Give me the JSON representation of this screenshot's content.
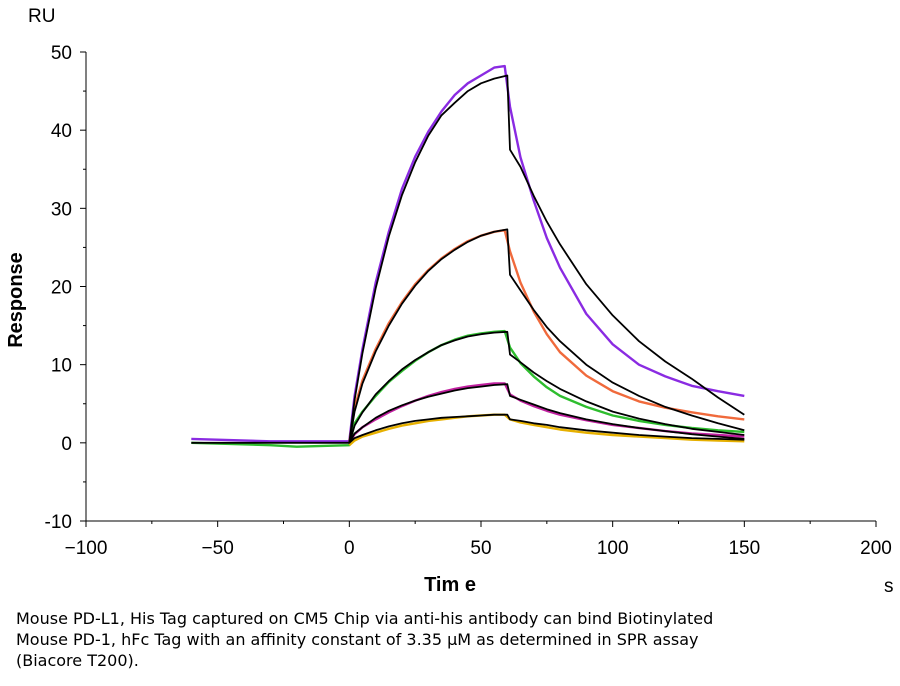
{
  "chart_data": {
    "type": "line",
    "title": "",
    "xlabel": "Tim e",
    "ylabel": "Response",
    "x_unit": "s",
    "y_unit": "RU",
    "xlim": [
      -100,
      200
    ],
    "ylim": [
      -10,
      50
    ],
    "x_ticks": [
      -100,
      -50,
      0,
      50,
      100,
      150,
      200
    ],
    "y_ticks": [
      -10,
      0,
      10,
      20,
      30,
      40,
      50
    ],
    "legend": "none",
    "grid": false,
    "colors": {
      "fit": "#000000",
      "purple": "#8a2be2",
      "orange": "#f06a3c",
      "green": "#2ebd2e",
      "magenta": "#c0209f",
      "yellow": "#e6b000"
    },
    "series": [
      {
        "color_key": "purple",
        "role": "measured",
        "x": [
          -60,
          -30,
          0,
          2,
          5,
          10,
          15,
          20,
          25,
          30,
          35,
          40,
          45,
          50,
          55,
          59,
          61,
          65,
          70,
          75,
          80,
          90,
          100,
          110,
          120,
          130,
          140,
          150
        ],
        "y": [
          0.5,
          0.2,
          0.2,
          6,
          12,
          20.5,
          27,
          32.5,
          36.6,
          39.8,
          42.4,
          44.5,
          46,
          47,
          48,
          48.2,
          43,
          36.5,
          31,
          26.2,
          22.4,
          16.5,
          12.6,
          10,
          8.5,
          7.3,
          6.6,
          6
        ]
      },
      {
        "color_key": "fit",
        "role": "fit",
        "x": [
          -60,
          -30,
          0,
          2,
          5,
          10,
          15,
          20,
          25,
          30,
          35,
          40,
          45,
          50,
          55,
          60,
          61,
          65,
          70,
          75,
          80,
          90,
          100,
          110,
          120,
          130,
          140,
          150
        ],
        "y": [
          0,
          0,
          0,
          5.5,
          11.5,
          19.8,
          26.4,
          31.7,
          35.9,
          39.3,
          41.9,
          43.5,
          45,
          46,
          46.6,
          47,
          37.5,
          35.3,
          31.6,
          28.3,
          25.4,
          20.3,
          16.3,
          13,
          10.4,
          8.2,
          5.8,
          3.6
        ]
      },
      {
        "color_key": "orange",
        "role": "measured",
        "x": [
          0,
          2,
          5,
          10,
          15,
          20,
          25,
          30,
          35,
          40,
          45,
          50,
          55,
          59,
          61,
          65,
          70,
          75,
          80,
          90,
          100,
          110,
          120,
          130,
          140,
          150
        ],
        "y": [
          0,
          4.5,
          8,
          12,
          15.3,
          18,
          20.3,
          22.1,
          23.6,
          24.8,
          25.8,
          26.5,
          27,
          27.2,
          24.5,
          20.5,
          16.8,
          13.9,
          11.6,
          8.6,
          6.6,
          5.3,
          4.5,
          3.9,
          3.4,
          3
        ]
      },
      {
        "color_key": "fit",
        "role": "fit",
        "x": [
          0,
          2,
          5,
          10,
          15,
          20,
          25,
          30,
          35,
          40,
          45,
          50,
          55,
          60,
          61,
          65,
          70,
          75,
          80,
          90,
          100,
          110,
          120,
          130,
          140,
          150
        ],
        "y": [
          0,
          4,
          7.6,
          11.7,
          15,
          17.8,
          20.1,
          22,
          23.5,
          24.7,
          25.7,
          26.5,
          27,
          27.3,
          21.5,
          19.5,
          17,
          14.8,
          13,
          10,
          7.7,
          6,
          4.6,
          3.5,
          2.5,
          1.6
        ]
      },
      {
        "color_key": "green",
        "role": "measured",
        "x": [
          -60,
          -30,
          -20,
          0,
          2,
          5,
          10,
          15,
          20,
          25,
          30,
          35,
          40,
          45,
          50,
          55,
          59,
          61,
          65,
          70,
          75,
          80,
          90,
          100,
          110,
          120,
          130,
          140,
          150
        ],
        "y": [
          0,
          -0.3,
          -0.5,
          -0.3,
          2.5,
          4,
          6,
          7.8,
          9.2,
          10.5,
          11.6,
          12.5,
          13.2,
          13.7,
          14,
          14.2,
          14.3,
          12.2,
          10.2,
          8.5,
          7.1,
          6,
          4.6,
          3.5,
          2.8,
          2.3,
          1.9,
          1.6,
          1.4
        ]
      },
      {
        "color_key": "fit",
        "role": "fit",
        "x": [
          0,
          2,
          5,
          10,
          15,
          20,
          25,
          30,
          35,
          40,
          45,
          50,
          55,
          60,
          61,
          65,
          70,
          75,
          80,
          90,
          100,
          110,
          120,
          130,
          140,
          150
        ],
        "y": [
          0,
          2.2,
          3.9,
          6.2,
          7.9,
          9.4,
          10.6,
          11.6,
          12.5,
          13.1,
          13.6,
          13.9,
          14.1,
          14.2,
          11.3,
          10.3,
          9,
          7.9,
          6.9,
          5.3,
          4,
          3.1,
          2.4,
          1.8,
          1.4,
          1
        ]
      },
      {
        "color_key": "magenta",
        "role": "measured",
        "x": [
          0,
          2,
          5,
          10,
          15,
          20,
          25,
          30,
          35,
          40,
          45,
          50,
          55,
          59,
          61,
          65,
          70,
          75,
          80,
          90,
          100,
          110,
          120,
          130,
          140,
          150
        ],
        "y": [
          0,
          1.1,
          2,
          3,
          3.9,
          4.7,
          5.4,
          6,
          6.5,
          6.9,
          7.2,
          7.4,
          7.6,
          7.6,
          6.2,
          5.4,
          4.7,
          4.1,
          3.6,
          2.9,
          2.3,
          1.9,
          1.5,
          1.2,
          1,
          0.8
        ]
      },
      {
        "color_key": "fit",
        "role": "fit",
        "x": [
          0,
          2,
          5,
          10,
          15,
          20,
          25,
          30,
          35,
          40,
          45,
          50,
          55,
          60,
          61,
          65,
          70,
          75,
          80,
          90,
          100,
          110,
          120,
          130,
          140,
          150
        ],
        "y": [
          0,
          1.2,
          2,
          3.2,
          4.1,
          4.8,
          5.4,
          5.9,
          6.3,
          6.7,
          7,
          7.2,
          7.4,
          7.5,
          6,
          5.5,
          4.9,
          4.3,
          3.8,
          3,
          2.4,
          1.9,
          1.5,
          1.1,
          0.8,
          0.5
        ]
      },
      {
        "color_key": "yellow",
        "role": "measured",
        "x": [
          0,
          2,
          5,
          10,
          15,
          20,
          25,
          30,
          35,
          40,
          45,
          50,
          55,
          59,
          61,
          65,
          70,
          75,
          80,
          90,
          100,
          110,
          120,
          130,
          140,
          150
        ],
        "y": [
          -0.3,
          0.3,
          0.8,
          1.3,
          1.8,
          2.2,
          2.5,
          2.8,
          3,
          3.2,
          3.4,
          3.5,
          3.6,
          3.6,
          3,
          2.6,
          2.3,
          2,
          1.7,
          1.3,
          1,
          0.8,
          0.6,
          0.4,
          0.3,
          0.2
        ]
      },
      {
        "color_key": "fit",
        "role": "fit",
        "x": [
          0,
          2,
          5,
          10,
          15,
          20,
          25,
          30,
          35,
          40,
          45,
          50,
          55,
          60,
          61,
          65,
          70,
          75,
          80,
          90,
          100,
          110,
          120,
          130,
          140,
          150
        ],
        "y": [
          0,
          0.6,
          1,
          1.6,
          2.1,
          2.5,
          2.8,
          3,
          3.2,
          3.3,
          3.4,
          3.5,
          3.6,
          3.6,
          3,
          2.8,
          2.5,
          2.3,
          2,
          1.6,
          1.3,
          1,
          0.8,
          0.6,
          0.5,
          0.4
        ]
      }
    ]
  },
  "caption": {
    "line1": "Mouse PD-L1, His Tag captured on CM5 Chip via anti-his antibody can bind Biotinylated",
    "line2": "Mouse PD-1, hFc Tag with an affinity constant of 3.35 μM as determined in SPR assay",
    "line3": "(Biacore T200)."
  }
}
